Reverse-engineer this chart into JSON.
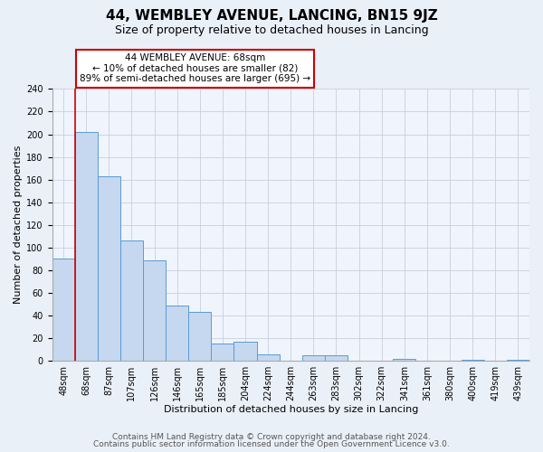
{
  "title": "44, WEMBLEY AVENUE, LANCING, BN15 9JZ",
  "subtitle": "Size of property relative to detached houses in Lancing",
  "xlabel": "Distribution of detached houses by size in Lancing",
  "ylabel": "Number of detached properties",
  "bar_labels": [
    "48sqm",
    "68sqm",
    "87sqm",
    "107sqm",
    "126sqm",
    "146sqm",
    "165sqm",
    "185sqm",
    "204sqm",
    "224sqm",
    "244sqm",
    "263sqm",
    "283sqm",
    "302sqm",
    "322sqm",
    "341sqm",
    "361sqm",
    "380sqm",
    "400sqm",
    "419sqm",
    "439sqm"
  ],
  "bar_values": [
    90,
    202,
    163,
    106,
    89,
    49,
    43,
    15,
    17,
    6,
    0,
    5,
    5,
    0,
    0,
    2,
    0,
    0,
    1,
    0,
    1
  ],
  "bar_color": "#c5d8f0",
  "bar_edge_color": "#5b9bd5",
  "red_line_index": 1,
  "annotation_title": "44 WEMBLEY AVENUE: 68sqm",
  "annotation_line1": "← 10% of detached houses are smaller (82)",
  "annotation_line2": "89% of semi-detached houses are larger (695) →",
  "annotation_box_color": "#ffffff",
  "annotation_box_edge": "#cc0000",
  "red_line_color": "#cc0000",
  "ylim": [
    0,
    240
  ],
  "yticks": [
    0,
    20,
    40,
    60,
    80,
    100,
    120,
    140,
    160,
    180,
    200,
    220,
    240
  ],
  "footer_line1": "Contains HM Land Registry data © Crown copyright and database right 2024.",
  "footer_line2": "Contains public sector information licensed under the Open Government Licence v3.0.",
  "bg_color": "#eaf0f8",
  "plot_bg_color": "#f0f4fc",
  "grid_color": "#c8d0dc",
  "title_fontsize": 11,
  "subtitle_fontsize": 9,
  "axis_label_fontsize": 8,
  "tick_fontsize": 7,
  "footer_fontsize": 6.5
}
